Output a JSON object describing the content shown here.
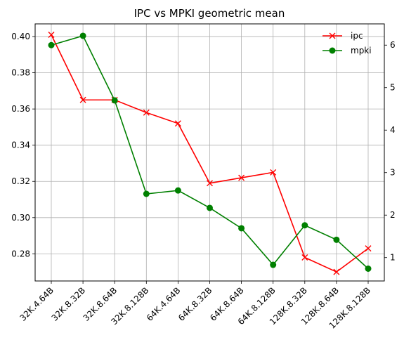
{
  "chart_data": {
    "type": "line",
    "title": "IPC vs MPKI geometric mean",
    "categories": [
      "32K.4.64B",
      "32K.8.32B",
      "32K.8.64B",
      "32K.8.128B",
      "64K.4.64B",
      "64K.8.32B",
      "64K.8.64B",
      "64K.8.128B",
      "128K.8.32B",
      "128K.8.64B",
      "128K.8.128B"
    ],
    "series": [
      {
        "name": "ipc",
        "axis": "left",
        "color": "#ff0000",
        "marker": "x",
        "values": [
          0.401,
          0.365,
          0.365,
          0.358,
          0.352,
          0.319,
          0.322,
          0.325,
          0.278,
          0.27,
          0.283
        ]
      },
      {
        "name": "mpki",
        "axis": "right",
        "color": "#008000",
        "marker": "o",
        "values": [
          6.0,
          6.22,
          4.7,
          2.5,
          2.58,
          2.17,
          1.69,
          0.83,
          1.76,
          1.42,
          0.74
        ]
      }
    ],
    "left_axis": {
      "min": 0.265,
      "max": 0.407,
      "ticks": [
        0.28,
        0.3,
        0.32,
        0.34,
        0.36,
        0.38,
        0.4
      ],
      "tick_labels": [
        "0.28",
        "0.30",
        "0.32",
        "0.34",
        "0.36",
        "0.38",
        "0.40"
      ]
    },
    "right_axis": {
      "min": 0.45,
      "max": 6.5,
      "ticks": [
        1,
        2,
        3,
        4,
        5,
        6
      ],
      "tick_labels": [
        "1",
        "2",
        "3",
        "4",
        "5",
        "6"
      ]
    },
    "grid": true,
    "legend": "top-right"
  }
}
